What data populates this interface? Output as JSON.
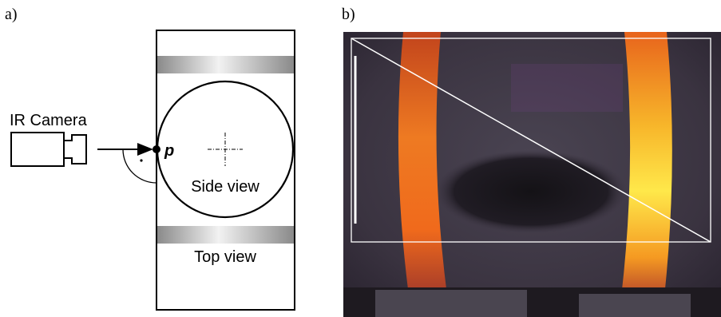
{
  "panel_a": {
    "label": "a)",
    "camera_label": "IR Camera",
    "point_label": "p",
    "side_label": "Side view",
    "top_label": "Top view"
  },
  "panel_b": {
    "label": "b)"
  }
}
